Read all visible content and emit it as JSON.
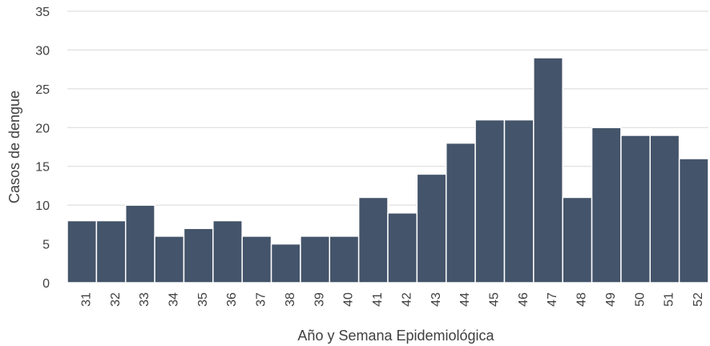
{
  "chart_data": {
    "type": "bar",
    "title": "",
    "xlabel": "Año y Semana Epidemiológica",
    "ylabel": "Casos de dengue",
    "categories": [
      "31",
      "32",
      "33",
      "34",
      "35",
      "36",
      "37",
      "38",
      "39",
      "40",
      "41",
      "42",
      "43",
      "44",
      "45",
      "46",
      "47",
      "48",
      "49",
      "50",
      "51",
      "52"
    ],
    "values": [
      8,
      8,
      10,
      6,
      7,
      8,
      6,
      5,
      6,
      6,
      11,
      9,
      14,
      18,
      21,
      21,
      29,
      11,
      20,
      19,
      19,
      16
    ],
    "ylim": [
      0,
      35
    ],
    "yticks": [
      0,
      5,
      10,
      15,
      20,
      25,
      30,
      35
    ],
    "grid": true,
    "bar_color": "#44546a",
    "x_tick_rotation": "vertical"
  }
}
